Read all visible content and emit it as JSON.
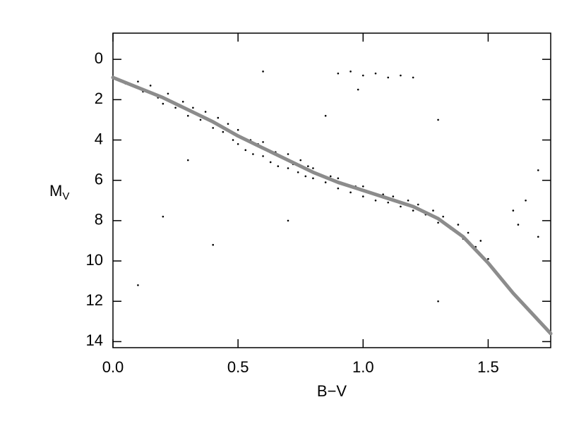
{
  "chart_data": {
    "type": "scatter",
    "x_label": "B−V",
    "y_label": "M",
    "y_label_sub": "V",
    "xlim": [
      0,
      1.75
    ],
    "ylim": [
      14.3,
      -1.3
    ],
    "xticks": [
      {
        "value": 0,
        "label": "0.0"
      },
      0.5,
      {
        "value": 1,
        "label": "1.0"
      },
      1.5
    ],
    "yticks": [
      0,
      2,
      4,
      6,
      8,
      10,
      12,
      14
    ],
    "points": {
      "color": "#000000",
      "x": [
        0.05,
        0.1,
        0.12,
        0.15,
        0.18,
        0.2,
        0.22,
        0.25,
        0.28,
        0.3,
        0.32,
        0.35,
        0.37,
        0.4,
        0.42,
        0.44,
        0.46,
        0.48,
        0.5,
        0.5,
        0.52,
        0.53,
        0.55,
        0.56,
        0.58,
        0.6,
        0.6,
        0.62,
        0.63,
        0.65,
        0.66,
        0.68,
        0.7,
        0.7,
        0.72,
        0.74,
        0.75,
        0.77,
        0.78,
        0.8,
        0.8,
        0.82,
        0.85,
        0.87,
        0.9,
        0.9,
        0.93,
        0.95,
        0.97,
        1.0,
        1.0,
        1.03,
        1.05,
        1.08,
        1.1,
        1.12,
        1.15,
        1.18,
        1.2,
        1.22,
        1.25,
        1.28,
        1.3,
        1.32,
        1.35,
        1.38,
        1.4,
        1.42,
        1.45,
        1.47,
        1.5,
        1.52,
        1.55,
        1.58,
        0.9,
        0.95,
        1.0,
        1.05,
        1.1,
        1.15,
        0.98,
        0.85,
        1.2,
        1.6,
        1.62,
        1.65,
        1.7,
        0.3,
        0.2,
        0.4,
        1.3,
        0.1,
        0.6,
        1.3,
        0.7,
        1.7
      ],
      "y": [
        1.2,
        1.1,
        1.6,
        1.3,
        1.9,
        2.2,
        1.7,
        2.4,
        2.1,
        2.8,
        2.4,
        3.0,
        2.6,
        3.4,
        2.9,
        3.6,
        3.2,
        4.0,
        3.5,
        4.2,
        3.9,
        4.5,
        4.0,
        4.7,
        4.2,
        4.8,
        4.1,
        4.5,
        5.1,
        4.6,
        5.3,
        4.9,
        5.4,
        4.7,
        5.2,
        5.6,
        5.0,
        5.8,
        5.3,
        5.9,
        5.4,
        5.7,
        6.1,
        5.8,
        6.4,
        5.9,
        6.2,
        6.6,
        6.3,
        6.8,
        6.3,
        6.6,
        7.0,
        6.7,
        7.1,
        6.8,
        7.3,
        7.0,
        7.5,
        7.2,
        7.7,
        7.5,
        8.1,
        7.8,
        8.4,
        8.2,
        8.9,
        8.6,
        9.3,
        9.0,
        9.9,
        10.4,
        10.8,
        11.3,
        0.7,
        0.6,
        0.8,
        0.7,
        0.9,
        0.8,
        1.5,
        2.8,
        0.9,
        7.5,
        8.2,
        7.0,
        8.8,
        5.0,
        7.8,
        9.2,
        12.0,
        11.2,
        0.6,
        3.0,
        8.0,
        5.5
      ]
    },
    "fit": {
      "color": "#8c8c8c",
      "x": [
        0,
        0.2,
        0.3,
        0.4,
        0.5,
        0.6,
        0.7,
        0.8,
        0.9,
        1.0,
        1.1,
        1.2,
        1.3,
        1.4,
        1.5,
        1.6,
        1.75
      ],
      "y": [
        0.9,
        1.9,
        2.5,
        3.1,
        3.8,
        4.4,
        5.0,
        5.6,
        6.1,
        6.5,
        6.9,
        7.3,
        7.9,
        8.8,
        10.1,
        11.6,
        13.6
      ]
    }
  }
}
